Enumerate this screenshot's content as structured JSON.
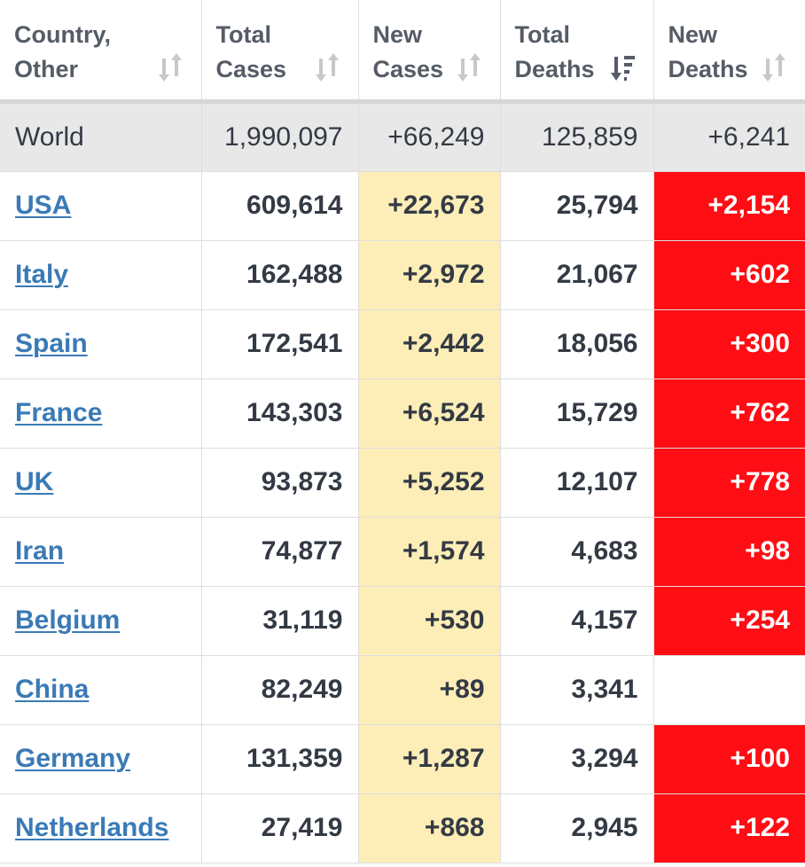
{
  "colors": {
    "header_text": "#555c66",
    "world_row_bg": "#e8e8e8",
    "new_cases_bg": "#fdeeb8",
    "new_deaths_bg": "#ff0d14",
    "link": "#3a7ab6",
    "sort_icon": "#c8c8c8",
    "sort_icon_active": "#555c66"
  },
  "headers": [
    {
      "line1": "Country,",
      "line2": "Other",
      "icon": "sort-both-icon"
    },
    {
      "line1": "Total",
      "line2": "Cases",
      "icon": "sort-both-icon"
    },
    {
      "line1": "New",
      "line2": "Cases",
      "icon": "sort-both-icon"
    },
    {
      "line1": "Total",
      "line2": "Deaths",
      "icon": "sort-descending-icon"
    },
    {
      "line1": "New",
      "line2": "Deaths",
      "icon": "sort-both-icon"
    }
  ],
  "world": {
    "name": "World",
    "total_cases": "1,990,097",
    "new_cases": "+66,249",
    "total_deaths": "125,859",
    "new_deaths": "+6,241"
  },
  "rows": [
    {
      "country": "USA",
      "total_cases": "609,614",
      "new_cases": "+22,673",
      "total_deaths": "25,794",
      "new_deaths": "+2,154"
    },
    {
      "country": "Italy",
      "total_cases": "162,488",
      "new_cases": "+2,972",
      "total_deaths": "21,067",
      "new_deaths": "+602"
    },
    {
      "country": "Spain",
      "total_cases": "172,541",
      "new_cases": "+2,442",
      "total_deaths": "18,056",
      "new_deaths": "+300"
    },
    {
      "country": "France",
      "total_cases": "143,303",
      "new_cases": "+6,524",
      "total_deaths": "15,729",
      "new_deaths": "+762"
    },
    {
      "country": "UK",
      "total_cases": "93,873",
      "new_cases": "+5,252",
      "total_deaths": "12,107",
      "new_deaths": "+778"
    },
    {
      "country": "Iran",
      "total_cases": "74,877",
      "new_cases": "+1,574",
      "total_deaths": "4,683",
      "new_deaths": "+98"
    },
    {
      "country": "Belgium",
      "total_cases": "31,119",
      "new_cases": "+530",
      "total_deaths": "4,157",
      "new_deaths": "+254"
    },
    {
      "country": "China",
      "total_cases": "82,249",
      "new_cases": "+89",
      "total_deaths": "3,341",
      "new_deaths": ""
    },
    {
      "country": "Germany",
      "total_cases": "131,359",
      "new_cases": "+1,287",
      "total_deaths": "3,294",
      "new_deaths": "+100"
    },
    {
      "country": "Netherlands",
      "total_cases": "27,419",
      "new_cases": "+868",
      "total_deaths": "2,945",
      "new_deaths": "+122"
    }
  ]
}
